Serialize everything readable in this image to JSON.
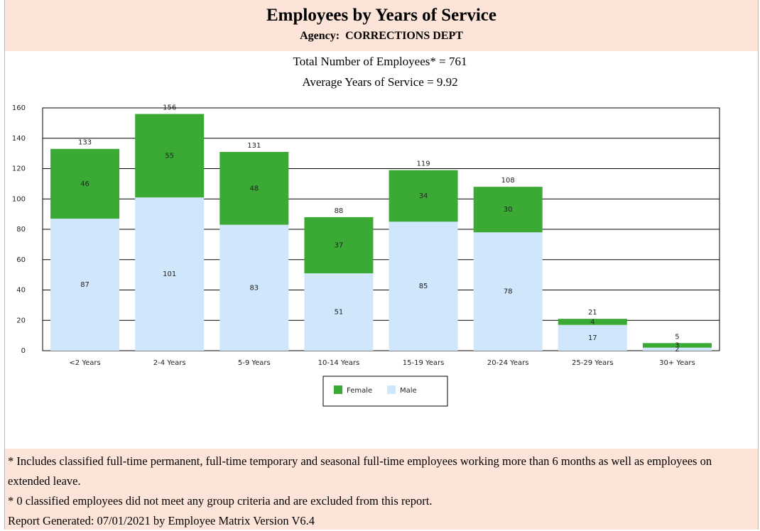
{
  "header": {
    "title": "Employees by Years of Service",
    "agency_label": "Agency:",
    "agency": "CORRECTIONS DEPT",
    "total_line": "Total Number of Employees* = 761",
    "average_line": "Average Years of Service = 9.92"
  },
  "chart_data": {
    "type": "stacked_bar",
    "categories": [
      "<2 Years",
      "2-4 Years",
      "5-9 Years",
      "10-14 Years",
      "15-19 Years",
      "20-24 Years",
      "25-29 Years",
      "30+ Years"
    ],
    "series": [
      {
        "name": "Female",
        "color": "#3aaa35",
        "values": [
          46,
          55,
          48,
          37,
          34,
          30,
          4,
          3
        ]
      },
      {
        "name": "Male",
        "color": "#cfe6fb",
        "values": [
          87,
          101,
          83,
          51,
          85,
          78,
          17,
          2
        ]
      }
    ],
    "totals": [
      133,
      156,
      131,
      88,
      119,
      108,
      21,
      5
    ],
    "ylim": [
      0,
      160
    ],
    "yticks": [
      0,
      20,
      40,
      60,
      80,
      100,
      120,
      140,
      160
    ],
    "grid": true,
    "legend": "bottom"
  },
  "footer": {
    "notes": [
      "* Includes classified full-time permanent, full-time temporary and seasonal full-time employees working more than 6 months as well as employees on extended leave.",
      "* 0 classified employees did not meet any group criteria and are excluded from this report.",
      "Report Generated: 07/01/2021 by Employee Matrix Version V6.4"
    ]
  }
}
